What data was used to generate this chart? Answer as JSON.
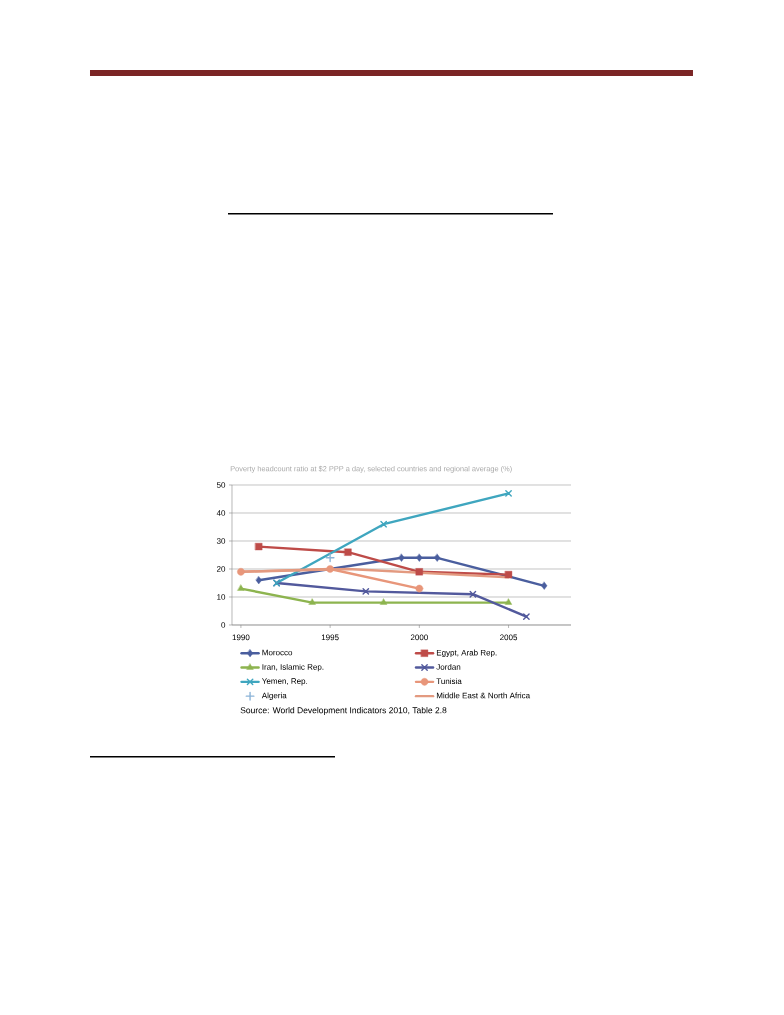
{
  "chart_data": {
    "type": "line",
    "title": "Poverty headcount ratio at $2 PPP a day, selected countries and regional average (%)",
    "xlim": [
      1989.5,
      2008.5
    ],
    "xticks": [
      1990,
      1995,
      2000,
      2005
    ],
    "ylim": [
      0,
      50
    ],
    "yticks": [
      0,
      10,
      20,
      30,
      40,
      50
    ],
    "grid": "y",
    "legend": "bottom",
    "annotations": [
      "Source: World Development Indicators 2010, Table 2.8"
    ],
    "series": [
      {
        "name": "Morocco",
        "color": "#4a5e9e",
        "marker": "diamond",
        "x": [
          1991,
          1999,
          2000,
          2001,
          2007
        ],
        "values": [
          16,
          24,
          24,
          24,
          14
        ]
      },
      {
        "name": "Egypt, Arab Rep.",
        "color": "#be4b48",
        "marker": "square",
        "x": [
          1991,
          1996,
          2000,
          2005
        ],
        "values": [
          28,
          26,
          19,
          18
        ]
      },
      {
        "name": "Iran, Islamic Rep.",
        "color": "#8db44f",
        "marker": "triangle",
        "x": [
          1990,
          1994,
          1998,
          2005
        ],
        "values": [
          13,
          8,
          8,
          8
        ]
      },
      {
        "name": "Jordan",
        "color": "#52599c",
        "marker": "cross",
        "x": [
          1992,
          1997,
          2003,
          2006
        ],
        "values": [
          15,
          12,
          11,
          3
        ]
      },
      {
        "name": "Yemen, Rep.",
        "color": "#3fa6bf",
        "marker": "cross",
        "x": [
          1992,
          1998,
          2005
        ],
        "values": [
          15,
          36,
          47
        ]
      },
      {
        "name": "Tunisia",
        "color": "#e8967a",
        "marker": "circle",
        "x": [
          1990,
          1995,
          2000
        ],
        "values": [
          19,
          20,
          13
        ]
      },
      {
        "name": "Algeria",
        "type": "scatter",
        "color": "#8cb4d8",
        "marker": "cross",
        "x": [
          1995
        ],
        "values": [
          24
        ]
      },
      {
        "name": "Middle East & North Africa",
        "color": "#e39a80",
        "marker": "none",
        "x": [
          1990,
          1996,
          2005
        ],
        "values": [
          19,
          20,
          17
        ]
      }
    ]
  }
}
